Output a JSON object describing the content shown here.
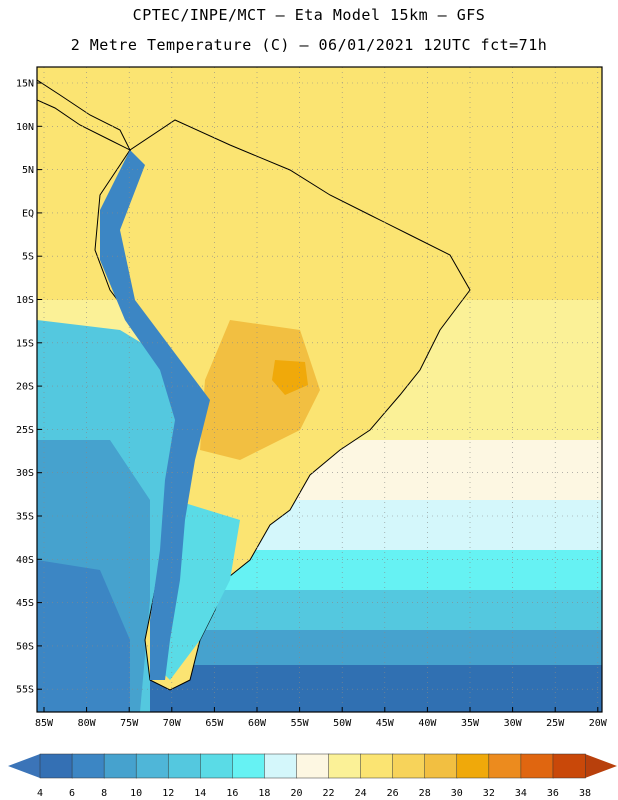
{
  "header": {
    "line1": "CPTEC/INPE/MCT –  Eta Model 15km – GFS",
    "line2": "2 Metre Temperature (C) – 06/01/2021 12UTC fct=71h"
  },
  "axes": {
    "lat_labels": [
      "15N",
      "10N",
      "5N",
      "EQ",
      "5S",
      "10S",
      "15S",
      "20S",
      "25S",
      "30S",
      "35S",
      "40S",
      "45S",
      "50S",
      "55S"
    ],
    "lon_labels": [
      "85W",
      "80W",
      "75W",
      "70W",
      "65W",
      "60W",
      "55W",
      "50W",
      "45W",
      "40W",
      "35W",
      "30W",
      "25W",
      "20W"
    ]
  },
  "colorbar": {
    "ticks": [
      "4",
      "6",
      "8",
      "10",
      "12",
      "14",
      "16",
      "18",
      "20",
      "22",
      "24",
      "26",
      "28",
      "30",
      "32",
      "34",
      "36",
      "38"
    ],
    "low_color": "#3b74b8",
    "high_color": "#b8400c",
    "colors": [
      "#3470b4",
      "#3c86c4",
      "#46a2ce",
      "#4fb6d8",
      "#54c8df",
      "#5adbe6",
      "#66f2f3",
      "#d4f7fb",
      "#fdf7e2",
      "#fbf197",
      "#fbe472",
      "#f7d35a",
      "#f2bf41",
      "#f0a90a",
      "#ec8b1e",
      "#e06610",
      "#c94809"
    ]
  },
  "map_colors": {
    "ocean_deep": "#3070b2",
    "ocean_cold": "#3c86c4",
    "ocean_mid": "#46a2ce",
    "ocean_cool": "#54c8df",
    "ocean_cyan": "#66f2f3",
    "ocean_pale": "#d4f7fb",
    "land_warm": "#fbe472",
    "land_hot": "#f2bf41",
    "land_mild": "#fbf197",
    "andes": "#3c86c4",
    "border": "#000000"
  }
}
